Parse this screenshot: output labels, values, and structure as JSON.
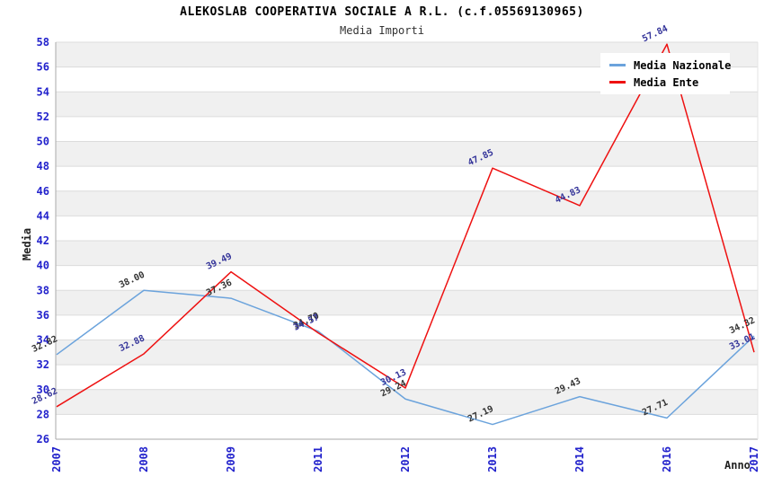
{
  "header": {
    "title": "ALEKOSLAB COOPERATIVA SOCIALE A R.L. (c.f.05569130965)",
    "subtitle": "Media Importi"
  },
  "chart_data": {
    "type": "line",
    "title": "ALEKOSLAB COOPERATIVA SOCIALE A R.L. (c.f.05569130965)",
    "subtitle": "Media Importi",
    "xlabel": "Anno",
    "ylabel": "Media",
    "categories": [
      "2007",
      "2008",
      "2009",
      "2011",
      "2012",
      "2013",
      "2014",
      "2016",
      "2017"
    ],
    "series": [
      {
        "name": "Media Nazionale",
        "color": "#6BA3DC",
        "label_color": "#333333",
        "values": [
          32.82,
          38.0,
          37.36,
          34.7,
          29.24,
          27.19,
          29.43,
          27.71,
          34.32
        ]
      },
      {
        "name": "Media Ente",
        "color": "#EE1111",
        "label_color": "#333399",
        "values": [
          28.62,
          32.88,
          39.49,
          34.57,
          30.13,
          47.85,
          44.83,
          57.84,
          33.01
        ]
      }
    ],
    "ylim": [
      26,
      58
    ],
    "ytick_step": 2,
    "grid": true,
    "legend_position": "top-right",
    "band_colors": [
      "#f0f0f0",
      "#ffffff"
    ],
    "tick_label_color": "#2222cc",
    "grid_color": "#dcdcdc",
    "axis_color": "#aaaaaa"
  }
}
